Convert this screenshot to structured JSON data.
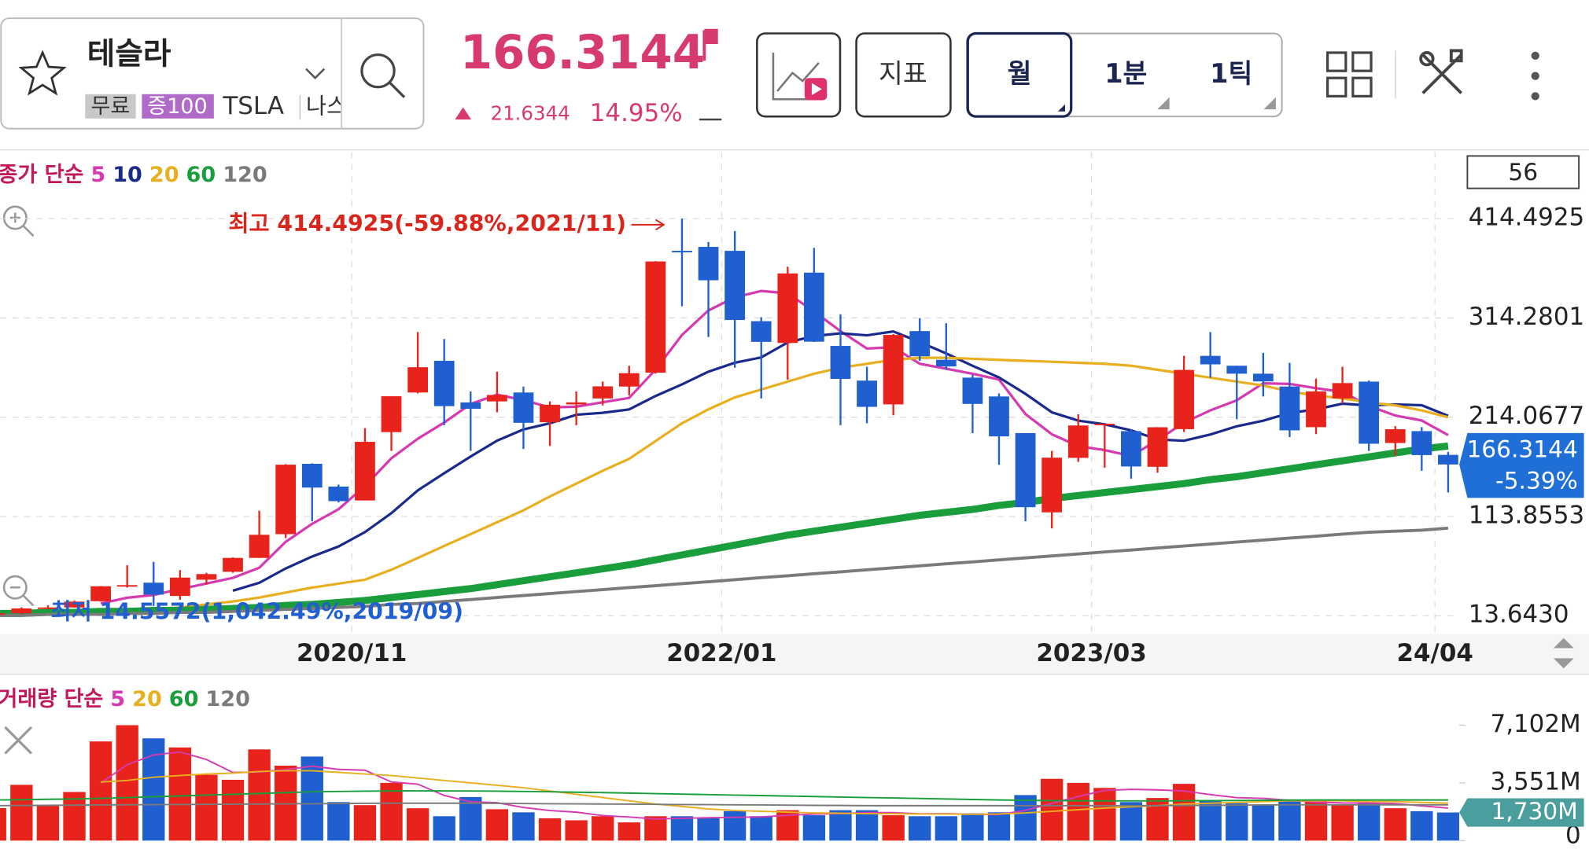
{
  "header": {
    "name": "테슬라",
    "tags": [
      "무료",
      "증100"
    ],
    "ticker": "TSLA",
    "exchange": "나스",
    "price": "166.3144",
    "change": "21.6344",
    "change_pct": "14.95%",
    "indicator_button": "지표",
    "periods": [
      "월",
      "1분",
      "1틱"
    ]
  },
  "chart_data": [
    {
      "type": "candlestick",
      "legend_title": "종가 단순",
      "count_box": 56,
      "categories": [
        null,
        null,
        null,
        null,
        null,
        null,
        null,
        null,
        null,
        null,
        null,
        null,
        null,
        null,
        "2020/11",
        null,
        null,
        null,
        null,
        null,
        null,
        null,
        null,
        null,
        null,
        null,
        null,
        null,
        "2022/01",
        null,
        null,
        null,
        null,
        null,
        null,
        null,
        null,
        null,
        null,
        null,
        null,
        null,
        "2023/03",
        null,
        null,
        null,
        null,
        null,
        null,
        null,
        null,
        null,
        null,
        null,
        null,
        "24/04"
      ],
      "open": [
        15.1,
        16.1,
        21.0,
        22.0,
        28.3,
        44.0,
        47.0,
        33.6,
        50.0,
        58.0,
        72.0,
        96.0,
        167.0,
        144.0,
        130.0,
        199.0,
        239.0,
        271.0,
        229.0,
        230.0,
        239.0,
        209.0,
        227.0,
        233.0,
        245.0,
        259.0,
        382.0,
        386.0,
        382.0,
        311.0,
        289.0,
        360.0,
        286.0,
        251.0,
        227.0,
        301.0,
        272.0,
        254.0,
        235.0,
        198.0,
        118.0,
        173.0,
        206.0,
        200.0,
        164.0,
        202.0,
        276.0,
        266.0,
        258.0,
        245.0,
        204.0,
        233.0,
        250.0,
        188.0,
        200.0,
        176.0
      ],
      "high": [
        16.8,
        22.0,
        24.2,
        29.0,
        43.5,
        64.6,
        68.0,
        59.7,
        57.0,
        72.5,
        119.7,
        166.7,
        167.5,
        146.0,
        203.0,
        231.0,
        300.0,
        293.0,
        240.0,
        260.0,
        245.0,
        230.0,
        240.0,
        250.0,
        266.0,
        371.7,
        414.4925,
        391.0,
        402.0,
        315.0,
        366.0,
        385.0,
        318.0,
        265.0,
        298.0,
        314.0,
        309.0,
        257.0,
        238.0,
        198.0,
        180.0,
        217.0,
        207.0,
        202.0,
        204.0,
        276.0,
        300.0,
        266.0,
        279.0,
        269.0,
        253.0,
        265.0,
        251.0,
        205.0,
        204.0,
        179.0
      ],
      "low": [
        14.5572,
        15.0,
        20.6,
        21.8,
        28.0,
        42.0,
        23.4,
        29.8,
        45.0,
        57.0,
        72.0,
        92.0,
        109.0,
        128.0,
        130.0,
        180.0,
        238.0,
        206.0,
        180.0,
        219.0,
        182.0,
        185.0,
        206.0,
        226.0,
        236.0,
        258.0,
        326.0,
        295.0,
        264.0,
        233.0,
        252.0,
        290.0,
        206.0,
        208.0,
        216.0,
        271.0,
        262.0,
        198.0,
        166.0,
        109.0,
        101.8,
        169.0,
        163.0,
        152.0,
        158.0,
        199.0,
        254.0,
        212.0,
        235.0,
        194.0,
        197.0,
        228.0,
        180.0,
        175.0,
        160.0,
        138.0
      ],
      "close": [
        16.06,
        20.99,
        21.99,
        27.89,
        43.37,
        44.53,
        34.93,
        52.13,
        55.67,
        72.0,
        95.38,
        166.1,
        143.0,
        129.3,
        189.2,
        235.2,
        264.5,
        225.2,
        222.6,
        236.5,
        208.4,
        226.6,
        229.0,
        245.2,
        258.5,
        371.3,
        381.6,
        352.3,
        312.2,
        290.1,
        359.2,
        290.3,
        252.7,
        224.5,
        297.1,
        275.6,
        265.3,
        227.5,
        194.7,
        123.2,
        173.2,
        205.7,
        207.5,
        164.3,
        203.9,
        261.8,
        267.4,
        258.0,
        250.2,
        200.8,
        240.1,
        248.5,
        187.3,
        201.9,
        175.8,
        166.3144
      ],
      "up_color": "#e8231b",
      "down_color": "#1f5fcf",
      "series": [
        {
          "name": "5",
          "color": "#d63ab0",
          "width": 2.5,
          "values": [
            null,
            null,
            null,
            null,
            26.06,
            31.75,
            34.54,
            40.57,
            46.13,
            51.85,
            62.02,
            88.26,
            106.43,
            121.16,
            144.6,
            172.6,
            192.3,
            208.7,
            227.4,
            236.8,
            231.4,
            223.9,
            224.6,
            229.1,
            233.5,
            262.1,
            297.1,
            321.8,
            335.2,
            341.5,
            339.1,
            320.8,
            300.9,
            283.4,
            284.8,
            268.0,
            263.0,
            258.0,
            252.0,
            217.3,
            196.8,
            184.9,
            180.9,
            174.8,
            190.9,
            208.6,
            221.0,
            231.1,
            248.3,
            247.6,
            243.3,
            239.6,
            225.4,
            215.7,
            210.7,
            196.0
          ]
        },
        {
          "name": "10",
          "color": "#1a2a8c",
          "width": 2.5,
          "values": [
            null,
            null,
            null,
            null,
            null,
            null,
            null,
            null,
            null,
            38.9,
            46.8,
            61.3,
            73.4,
            83.5,
            98.1,
            117.2,
            140.2,
            157.5,
            174.3,
            190.4,
            201.7,
            208.0,
            216.6,
            218.5,
            221.9,
            235.5,
            247.2,
            260.0,
            269.0,
            274.4,
            289.6,
            296.0,
            298.8,
            296.7,
            300.6,
            290.0,
            278.4,
            265.9,
            254.2,
            237.6,
            219.0,
            210.6,
            206.8,
            200.8,
            191.6,
            190.3,
            196.6,
            204.9,
            210.5,
            218.3,
            222.0,
            227.7,
            226.0,
            227.0,
            226.2,
            215.4
          ]
        },
        {
          "name": "20",
          "color": "#e8b020",
          "width": 2.5,
          "values": [
            null,
            null,
            null,
            null,
            null,
            18,
            20,
            22,
            25,
            28,
            32,
            37,
            42,
            46,
            50,
            60,
            72,
            84,
            96,
            108,
            120,
            134,
            147,
            160,
            172,
            190,
            208,
            222,
            234,
            242,
            250,
            258,
            264,
            268,
            272,
            274,
            274,
            273,
            272,
            271,
            270,
            269,
            268,
            266,
            262,
            258,
            254,
            250,
            246,
            240,
            236,
            233,
            229,
            226,
            221,
            214
          ]
        },
        {
          "name": "60",
          "color": "#1a9e3c",
          "width": 7,
          "values": [
            16,
            16,
            17,
            17,
            18,
            18,
            19,
            19,
            20,
            21,
            22,
            24,
            25,
            27,
            29,
            32,
            35,
            38,
            41,
            45,
            49,
            53,
            57,
            61,
            65,
            70,
            75,
            80,
            85,
            90,
            95,
            99,
            103,
            107,
            111,
            115,
            118,
            121,
            125,
            128,
            132,
            135,
            138,
            141,
            144,
            147,
            151,
            154,
            158,
            162,
            166,
            170,
            174,
            178,
            182,
            185
          ]
        },
        {
          "name": "120",
          "color": "#7a7a7a",
          "width": 3,
          "values": [
            14,
            14,
            15,
            15,
            15,
            16,
            16,
            17,
            17,
            18,
            19,
            20,
            21,
            22,
            23,
            25,
            26,
            28,
            30,
            32,
            34,
            36,
            38,
            40,
            42,
            44,
            46,
            48,
            50,
            52,
            54,
            56,
            58,
            60,
            62,
            64,
            66,
            68,
            70,
            72,
            74,
            76,
            78,
            80,
            82,
            84,
            86,
            88,
            90,
            92,
            94,
            96,
            98,
            99,
            100,
            102
          ]
        }
      ],
      "ylim": [
        0,
        460
      ],
      "yticks": [
        414.4925,
        314.2801,
        214.0677,
        113.8553,
        {
          "value": 13.643,
          "label": "13.6430"
        }
      ],
      "annotations": {
        "high": "최고 414.4925(-59.88%,2021/11)",
        "low": "최저 14.5572(1,042.49%,2019/09)"
      },
      "price_tag": {
        "value": 166.3144,
        "change": "-5.39%"
      }
    },
    {
      "type": "bar",
      "legend_title": "거래량 단순",
      "values": [
        2000,
        3430,
        2180,
        2990,
        6100,
        7100,
        6290,
        5730,
        4050,
        3740,
        5610,
        4610,
        5170,
        2370,
        2180,
        3550,
        1990,
        1500,
        2680,
        1930,
        1740,
        1370,
        1250,
        1500,
        1120,
        1500,
        1500,
        1370,
        1810,
        1500,
        1870,
        1560,
        1870,
        1870,
        1560,
        1500,
        1500,
        1680,
        1740,
        2800,
        3800,
        3550,
        3240,
        2370,
        2620,
        3490,
        2430,
        2300,
        2180,
        2490,
        2430,
        2180,
        2300,
        1990,
        1810,
        1730
      ],
      "last_label": "1,730M",
      "series": [
        {
          "name": "5",
          "color": "#d63ab0",
          "values": [
            null,
            null,
            null,
            null,
            3540,
            4670,
            5270,
            5450,
            4990,
            4190,
            4210,
            4370,
            4580,
            4380,
            4330,
            3610,
            3470,
            2780,
            2380,
            2330,
            2040,
            1850,
            1750,
            1540,
            1450,
            1330,
            1370,
            1410,
            1430,
            1460,
            1560,
            1630,
            1660,
            1720,
            1720,
            1650,
            1660,
            1620,
            1600,
            1860,
            2290,
            2710,
            3090,
            3150,
            3120,
            3050,
            2830,
            2640,
            2600,
            2480,
            2370,
            2320,
            2310,
            2280,
            2140,
            2000
          ]
        },
        {
          "name": "20",
          "color": "#e8b020",
          "values": [
            null,
            null,
            null,
            null,
            3600,
            3700,
            3900,
            4000,
            4100,
            4150,
            4250,
            4300,
            4300,
            4200,
            4100,
            4000,
            3850,
            3700,
            3550,
            3400,
            3250,
            3050,
            2850,
            2650,
            2450,
            2250,
            2100,
            1950,
            1850,
            1800,
            1750,
            1700,
            1680,
            1660,
            1650,
            1640,
            1630,
            1620,
            1640,
            1700,
            1800,
            1900,
            2000,
            2080,
            2150,
            2250,
            2300,
            2350,
            2400,
            2450,
            2450,
            2450,
            2400,
            2400,
            2350,
            2300
          ]
        },
        {
          "name": "60",
          "color": "#1a9e3c",
          "values": [
            2500,
            2520,
            2540,
            2560,
            2600,
            2650,
            2700,
            2750,
            2800,
            2850,
            2900,
            2950,
            3000,
            3020,
            3040,
            3050,
            3060,
            3060,
            3050,
            3040,
            3020,
            3000,
            2980,
            2950,
            2920,
            2890,
            2860,
            2830,
            2800,
            2770,
            2740,
            2710,
            2680,
            2650,
            2620,
            2590,
            2560,
            2530,
            2500,
            2480,
            2460,
            2450,
            2440,
            2440,
            2440,
            2450,
            2460,
            2470,
            2480,
            2490,
            2500,
            2500,
            2500,
            2500,
            2500,
            2500
          ]
        },
        {
          "name": "120",
          "color": "#7a7a7a",
          "values": [
            2150,
            2160,
            2170,
            2180,
            2190,
            2200,
            2210,
            2220,
            2230,
            2240,
            2250,
            2260,
            2270,
            2280,
            2290,
            2300,
            2300,
            2300,
            2300,
            2290,
            2280,
            2270,
            2260,
            2250,
            2240,
            2230,
            2220,
            2210,
            2200,
            2190,
            2180,
            2170,
            2160,
            2150,
            2150,
            2150,
            2150,
            2150,
            2150,
            2150,
            2150,
            2150,
            2150,
            2150,
            2150,
            2160,
            2170,
            2180,
            2190,
            2200,
            2200,
            2200,
            2200,
            2200,
            2200,
            2200
          ]
        }
      ],
      "ylim": [
        0,
        7800
      ],
      "yticks": [
        {
          "value": 7102,
          "label": "7,102M"
        },
        {
          "value": 3551,
          "label": "3,551M"
        },
        0
      ]
    }
  ]
}
